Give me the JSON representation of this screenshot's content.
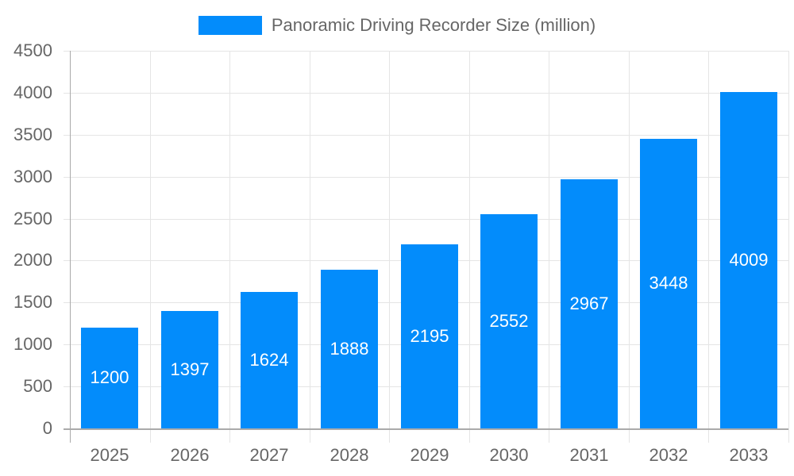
{
  "chart_data": {
    "type": "bar",
    "title": "",
    "xlabel": "",
    "ylabel": "",
    "categories": [
      "2025",
      "2026",
      "2027",
      "2028",
      "2029",
      "2030",
      "2031",
      "2032",
      "2033"
    ],
    "series": [
      {
        "name": "Panoramic Driving Recorder Size (million)",
        "values": [
          1200,
          1397,
          1624,
          1888,
          2195,
          2552,
          2967,
          3448,
          4009
        ],
        "color": "#038cfb"
      }
    ],
    "values": [
      1200,
      1397,
      1624,
      1888,
      2195,
      2552,
      2967,
      3448,
      4009
    ],
    "data_labels": [
      "1200",
      "1397",
      "1624",
      "1888",
      "2195",
      "2552",
      "2967",
      "3448",
      "4009"
    ],
    "ylim": [
      0,
      4500
    ],
    "yticks": [
      "0",
      "500",
      "1000",
      "1500",
      "2000",
      "2500",
      "3000",
      "3500",
      "4000",
      "4500"
    ],
    "ytick_values": [
      0,
      500,
      1000,
      1500,
      2000,
      2500,
      3000,
      3500,
      4000,
      4500
    ],
    "grid": true,
    "legend_position": "top"
  },
  "legend": {
    "label": "Panoramic Driving Recorder Size (million)",
    "color": "#038cfb"
  },
  "colors": {
    "bar": "#038cfb",
    "text": "#666666",
    "grid": "#e5e5e5",
    "axis": "#aaaaaa",
    "bar_label": "#ffffff"
  }
}
